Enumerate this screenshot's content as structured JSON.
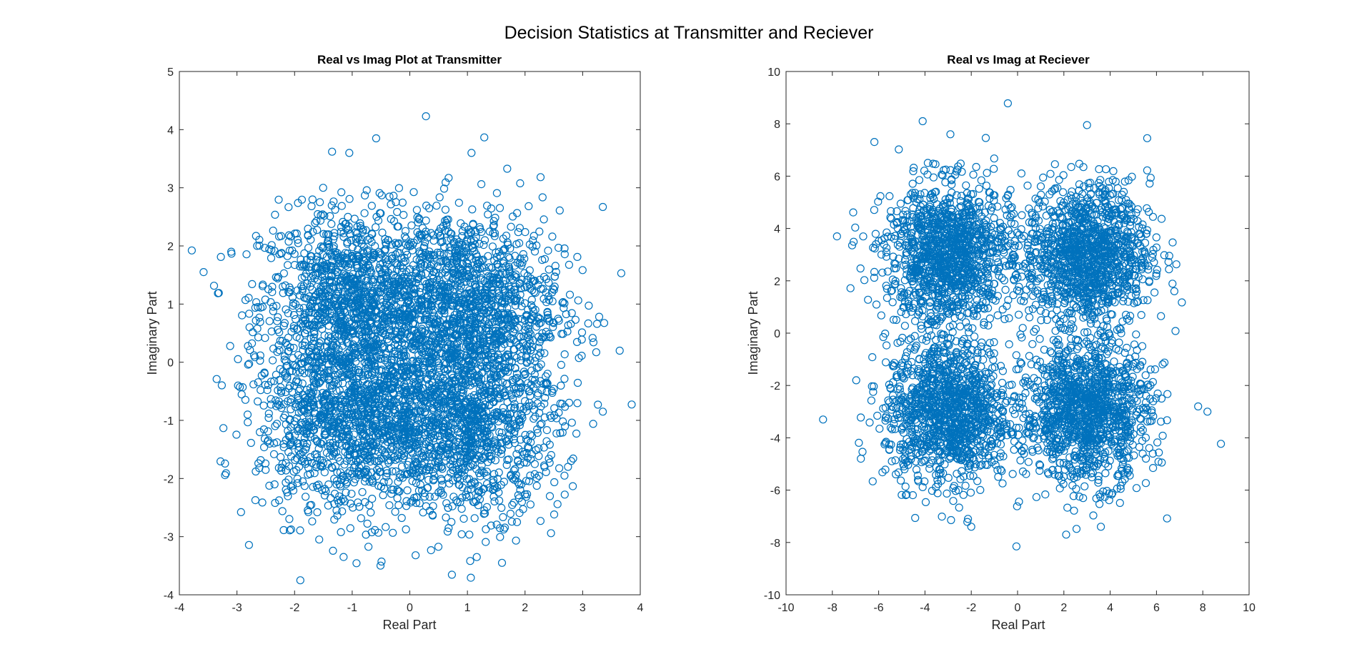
{
  "figure": {
    "title": "Decision Statistics at Transmitter and Reciever",
    "marker_color": "#0072bd"
  },
  "chart_data": [
    {
      "type": "scatter",
      "title": "Real vs Imag Plot at Transmitter",
      "xlabel": "Real Part",
      "ylabel": "Imaginary Part",
      "xlim": [
        -4,
        4
      ],
      "ylim": [
        -4,
        5
      ],
      "xticks": [
        -4,
        -3,
        -2,
        -1,
        0,
        1,
        2,
        3,
        4
      ],
      "yticks": [
        -4,
        -3,
        -2,
        -1,
        0,
        1,
        2,
        3,
        4,
        5
      ],
      "marker": "open-circle",
      "clusters": {
        "centers": [
          [
            -1,
            1
          ],
          [
            1,
            1
          ],
          [
            -1,
            -1
          ],
          [
            1,
            -1
          ]
        ],
        "points_per_cluster": 1200,
        "spread_std": 0.8
      },
      "notable_points": [
        {
          "x": 0.28,
          "y": 4.23
        },
        {
          "x": -1.05,
          "y": 3.6
        },
        {
          "x": 1.07,
          "y": 3.6
        },
        {
          "x": -3.58,
          "y": 1.55
        },
        {
          "x": 3.67,
          "y": 1.53
        },
        {
          "x": 3.35,
          "y": 2.67
        },
        {
          "x": -1.9,
          "y": -3.75
        },
        {
          "x": 1.6,
          "y": -3.45
        },
        {
          "x": -1.15,
          "y": -3.35
        },
        {
          "x": 0.1,
          "y": -3.32
        },
        {
          "x": 3.35,
          "y": -0.85
        },
        {
          "x": -3.1,
          "y": 1.9
        }
      ]
    },
    {
      "type": "scatter",
      "title": "Real vs Imag at Reciever",
      "xlabel": "Real Part",
      "ylabel": "Imaginary Part",
      "xlim": [
        -10,
        10
      ],
      "ylim": [
        -10,
        10
      ],
      "xticks": [
        -10,
        -8,
        -6,
        -4,
        -2,
        0,
        2,
        4,
        6,
        8,
        10
      ],
      "yticks": [
        -10,
        -8,
        -6,
        -4,
        -2,
        0,
        2,
        4,
        6,
        8,
        10
      ],
      "marker": "open-circle",
      "clusters": {
        "centers": [
          [
            -3,
            3
          ],
          [
            3,
            3
          ],
          [
            -3,
            -3
          ],
          [
            3,
            -3
          ]
        ],
        "points_per_cluster": 1200,
        "spread_std": 1.35
      },
      "notable_points": [
        {
          "x": -4.1,
          "y": 8.1
        },
        {
          "x": 3.0,
          "y": 7.95
        },
        {
          "x": -2.9,
          "y": 7.6
        },
        {
          "x": -8.4,
          "y": -3.3
        },
        {
          "x": 8.2,
          "y": -3.0
        },
        {
          "x": -0.05,
          "y": -8.15
        },
        {
          "x": 2.1,
          "y": -7.7
        },
        {
          "x": -7.8,
          "y": 3.7
        },
        {
          "x": 7.8,
          "y": -2.8
        },
        {
          "x": 5.6,
          "y": 7.45
        },
        {
          "x": -2.0,
          "y": -7.4
        },
        {
          "x": 3.6,
          "y": -7.4
        }
      ]
    }
  ]
}
